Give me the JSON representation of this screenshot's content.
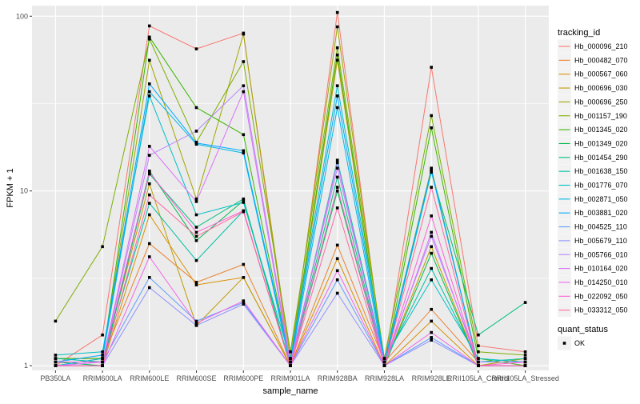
{
  "chart_data": {
    "type": "line",
    "xlabel": "sample_name",
    "ylabel": "FPKM + 1",
    "y_scale": "log10",
    "ylim": [
      0.94,
      115
    ],
    "y_ticks": [
      {
        "value": 1,
        "label": "1"
      },
      {
        "value": 10,
        "label": "10"
      },
      {
        "value": 100,
        "label": "100"
      }
    ],
    "grid": true,
    "legend_position": "right",
    "categories": [
      "PB350LA",
      "RRIM600LA",
      "RRIM600LE",
      "RRIM600SE",
      "RRIM600PE",
      "RRIM901LA",
      "RRIM928BA",
      "RRIM928LA",
      "RRIM928LE",
      "RRII105LA_Control",
      "RRII105LA_Stressed"
    ],
    "series_legend_title": "tracking_id",
    "series": [
      {
        "name": "Hb_000096_210",
        "color": "#F8766D",
        "values": [
          1.0,
          1.5,
          88,
          65,
          80,
          1.0,
          105,
          1.0,
          51,
          1.3,
          1.2
        ]
      },
      {
        "name": "Hb_000482_070",
        "color": "#EA8331",
        "values": [
          1.1,
          1.1,
          5.0,
          3.0,
          3.8,
          1.0,
          4.9,
          1.05,
          2.1,
          1.05,
          1.05
        ]
      },
      {
        "name": "Hb_000567_060",
        "color": "#D89000",
        "values": [
          1.0,
          1.0,
          7.3,
          2.9,
          3.2,
          1.0,
          4.1,
          1.0,
          1.8,
          1.0,
          1.0
        ]
      },
      {
        "name": "Hb_000696_030",
        "color": "#C09B00",
        "values": [
          1.05,
          1.05,
          11.0,
          1.7,
          3.2,
          1.0,
          56,
          1.0,
          4.8,
          1.0,
          1.1
        ]
      },
      {
        "name": "Hb_000696_250",
        "color": "#A3A500",
        "values": [
          1.0,
          1.1,
          56,
          9.0,
          79,
          1.1,
          87,
          1.05,
          13.5,
          1.0,
          1.1
        ]
      },
      {
        "name": "Hb_001157_190",
        "color": "#7CAE00",
        "values": [
          1.8,
          4.8,
          74,
          19,
          55,
          1.2,
          66,
          1.1,
          27,
          1.2,
          1.15
        ]
      },
      {
        "name": "Hb_001345_020",
        "color": "#39B600",
        "values": [
          1.1,
          1.1,
          76,
          30,
          21,
          1.05,
          60,
          1.0,
          23,
          1.1,
          1.0
        ]
      },
      {
        "name": "Hb_001349_020",
        "color": "#00BB4E",
        "values": [
          1.05,
          1.0,
          13.0,
          5.2,
          8.8,
          1.0,
          10.0,
          1.0,
          4.4,
          1.0,
          1.0
        ]
      },
      {
        "name": "Hb_001454_290",
        "color": "#00BF7D",
        "values": [
          1.0,
          1.0,
          12.5,
          6.2,
          9.0,
          1.0,
          12.0,
          1.0,
          12.8,
          1.5,
          2.3
        ]
      },
      {
        "name": "Hb_001638_150",
        "color": "#00C1A3",
        "values": [
          1.1,
          1.05,
          8.5,
          4.0,
          7.7,
          1.0,
          15.0,
          1.05,
          3.6,
          1.05,
          1.1
        ]
      },
      {
        "name": "Hb_001776_070",
        "color": "#00BFC4",
        "values": [
          1.15,
          1.2,
          35,
          7.3,
          8.6,
          1.1,
          40,
          1.1,
          3.1,
          1.1,
          1.05
        ]
      },
      {
        "name": "Hb_002871_050",
        "color": "#00B8E7",
        "values": [
          1.0,
          1.1,
          37,
          18.5,
          16.5,
          1.0,
          30,
          1.0,
          13.0,
          1.0,
          1.0
        ]
      },
      {
        "name": "Hb_003881_020",
        "color": "#00A9FF",
        "values": [
          1.05,
          1.15,
          41,
          18.8,
          17.0,
          1.05,
          35,
          1.05,
          13.2,
          1.0,
          1.0
        ]
      },
      {
        "name": "Hb_004525_110",
        "color": "#619CFF",
        "values": [
          1.0,
          1.05,
          3.2,
          1.8,
          2.3,
          1.0,
          3.1,
          1.0,
          1.45,
          1.0,
          1.0
        ]
      },
      {
        "name": "Hb_005679_110",
        "color": "#8F91FF",
        "values": [
          1.0,
          1.0,
          2.8,
          1.7,
          2.25,
          1.0,
          2.6,
          1.0,
          1.4,
          1.0,
          1.0
        ]
      },
      {
        "name": "Hb_005766_010",
        "color": "#B983FF",
        "values": [
          1.05,
          1.05,
          16.0,
          22,
          40,
          1.05,
          13.5,
          1.05,
          5.5,
          1.05,
          1.05
        ]
      },
      {
        "name": "Hb_010164_020",
        "color": "#DB72FB",
        "values": [
          1.0,
          1.05,
          18.0,
          8.7,
          37,
          1.0,
          14.5,
          1.0,
          5.8,
          1.0,
          1.0
        ]
      },
      {
        "name": "Hb_014250_010",
        "color": "#F066EA",
        "values": [
          1.0,
          1.0,
          4.2,
          1.75,
          2.35,
          1.0,
          3.5,
          1.0,
          1.55,
          1.0,
          1.0
        ]
      },
      {
        "name": "Hb_022092_050",
        "color": "#FC61D5",
        "values": [
          1.05,
          1.05,
          12.8,
          5.8,
          7.7,
          1.0,
          10.5,
          1.0,
          7.2,
          1.0,
          1.05
        ]
      },
      {
        "name": "Hb_033312_050",
        "color": "#FF67A4",
        "values": [
          1.0,
          1.0,
          9.5,
          5.5,
          7.6,
          1.0,
          8.0,
          1.0,
          10.5,
          1.0,
          1.0
        ]
      }
    ],
    "quant_status_legend": {
      "title": "quant_status",
      "items": [
        {
          "label": "OK"
        }
      ]
    },
    "panel_background": "#EBEBEB",
    "grid_color": "#FFFFFF",
    "point_color": "#000000"
  }
}
